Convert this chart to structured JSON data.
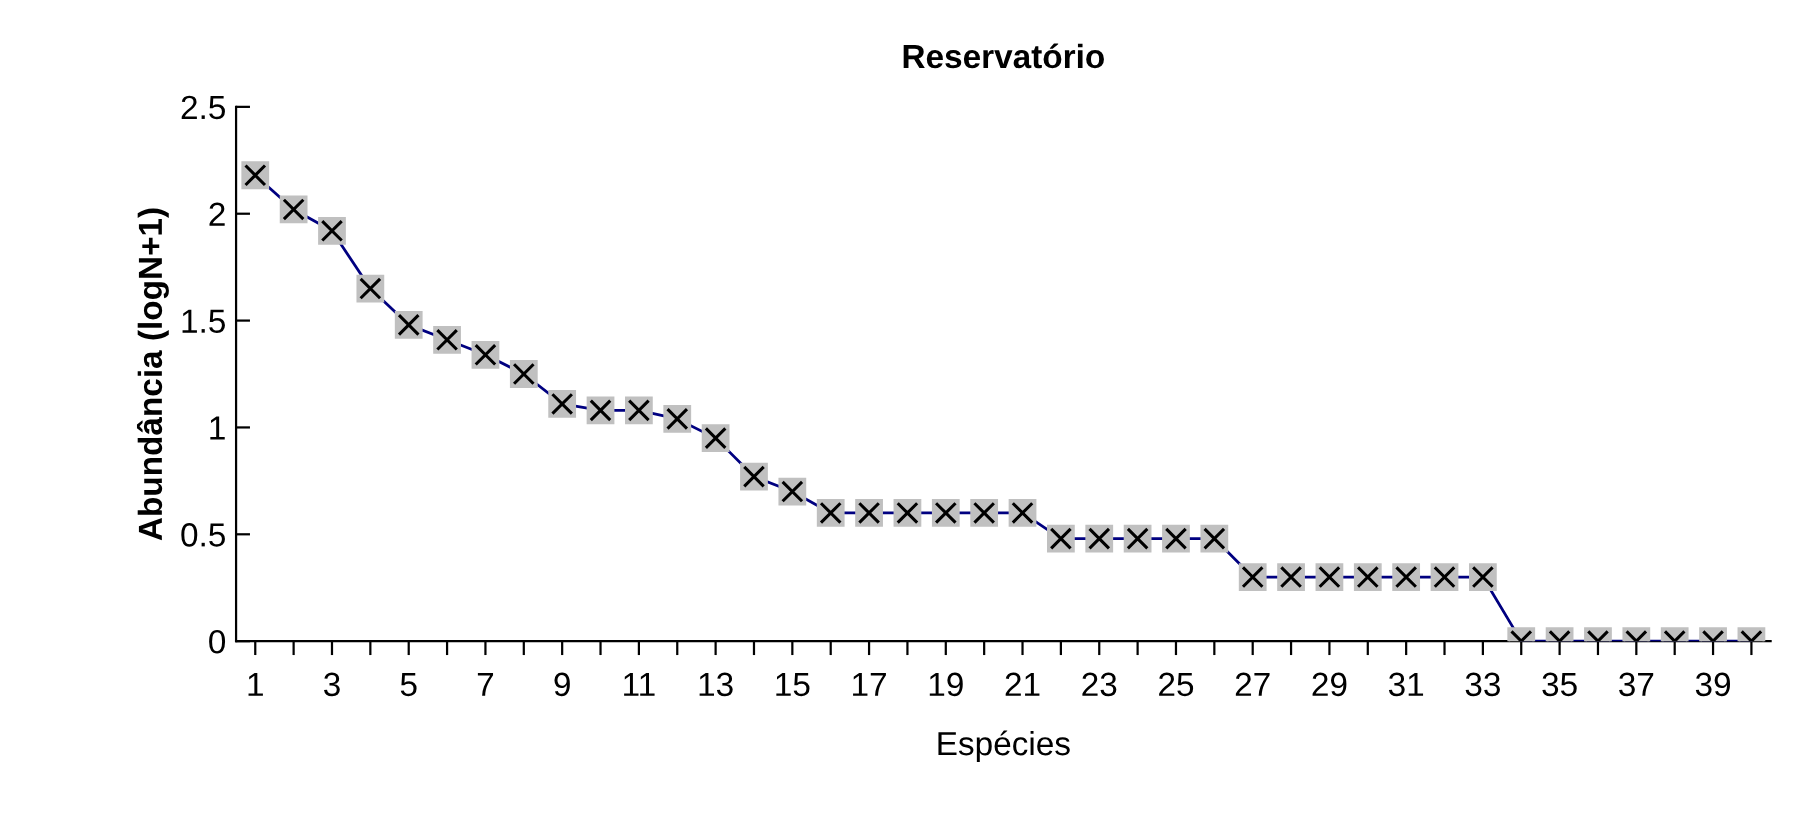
{
  "chart_data": {
    "type": "line",
    "title": "Reservatório",
    "xlabel": "Espécies",
    "ylabel": "Abundância (logN+1)",
    "categories": [
      "1",
      null,
      "3",
      null,
      "5",
      null,
      "7",
      null,
      "9",
      null,
      "11",
      null,
      "13",
      null,
      "15",
      null,
      "17",
      null,
      "19",
      null,
      "21",
      null,
      "23",
      null,
      "25",
      null,
      "27",
      null,
      "29",
      null,
      "31",
      null,
      "33",
      null,
      "35",
      null,
      "37",
      null,
      "39",
      null
    ],
    "series": [
      {
        "color": "#000080",
        "values": [
          2.18,
          2.02,
          1.92,
          1.65,
          1.48,
          1.41,
          1.34,
          1.25,
          1.11,
          1.08,
          1.08,
          1.04,
          0.95,
          0.77,
          0.7,
          0.6,
          0.6,
          0.6,
          0.6,
          0.6,
          0.6,
          0.48,
          0.48,
          0.48,
          0.48,
          0.48,
          0.3,
          0.3,
          0.3,
          0.3,
          0.3,
          0.3,
          0.3,
          0,
          0,
          0,
          0,
          0,
          0,
          0
        ]
      }
    ],
    "ylim": [
      0,
      2.5
    ],
    "yticks": [
      0,
      0.5,
      1,
      1.5,
      2,
      2.5
    ],
    "grid": false,
    "legend": false,
    "marker": "square",
    "line_style": "solid"
  }
}
